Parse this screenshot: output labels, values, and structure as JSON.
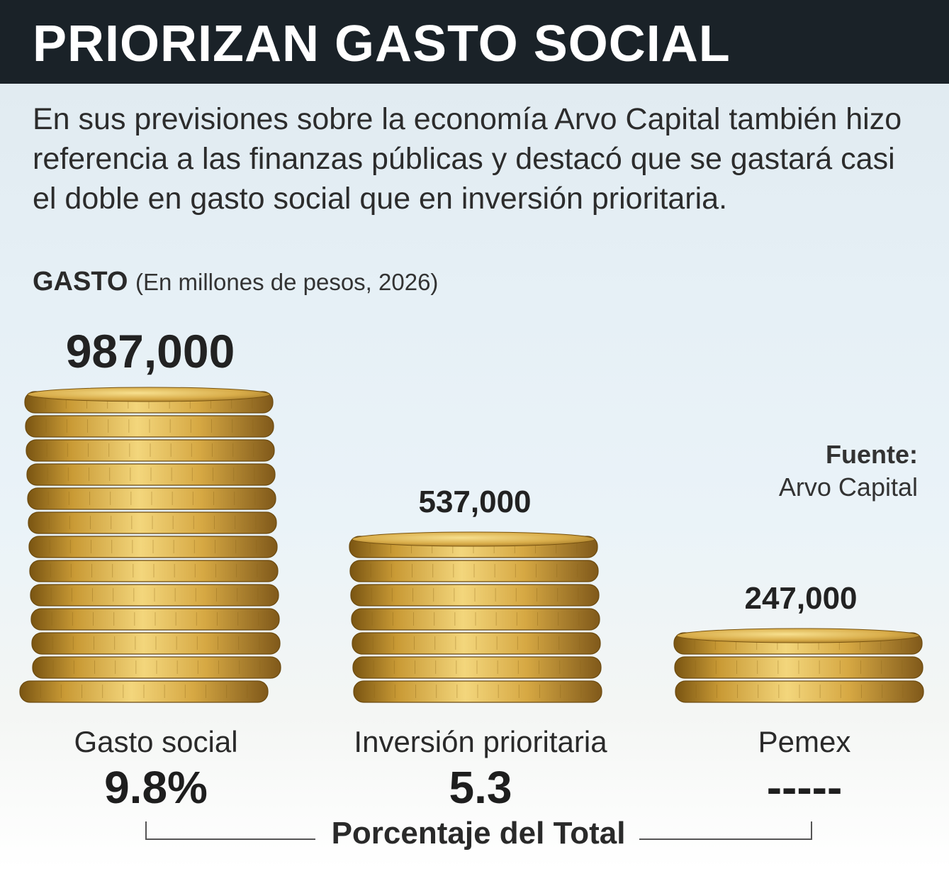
{
  "header": {
    "title": "PRIORIZAN GASTO SOCIAL"
  },
  "intro": "En sus previsiones sobre la economía Arvo Capital también hizo referencia a las finanzas públicas y destacó que se gastará casi el doble en gasto social que en inversión prioritaria.",
  "subtitle": {
    "strong": "GASTO",
    "unit": "(En millones de pesos, 2026)"
  },
  "source": {
    "label": "Fuente:",
    "name": "Arvo Capital"
  },
  "footer": {
    "label": "Porcentaje del Total"
  },
  "colors": {
    "header_bg": "#1a2228",
    "coin_gold": "#d4a53c",
    "coin_light": "#f4d97a",
    "coin_dark": "#8a6418"
  },
  "chart_data": {
    "type": "bar",
    "categories": [
      "Gasto social",
      "Inversión prioritaria",
      "Pemex"
    ],
    "values": [
      987000,
      537000,
      247000
    ],
    "value_labels": [
      "987,000",
      "537,000",
      "247,000"
    ],
    "percent_labels": [
      "9.8%",
      "5.3",
      "-----"
    ],
    "title": "GASTO",
    "ylabel": "(En millones de pesos, 2026)"
  }
}
